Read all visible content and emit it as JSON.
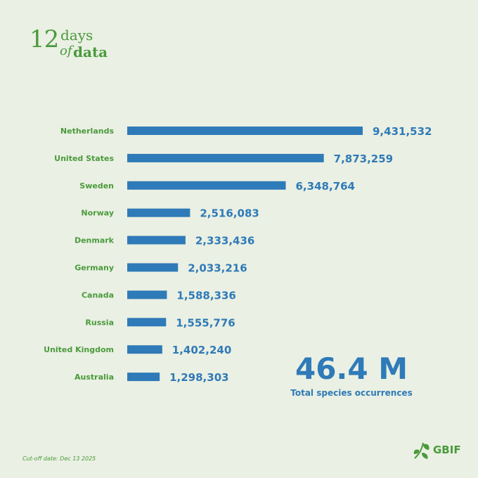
{
  "branding": {
    "logo_number": "12",
    "logo_days": "days",
    "logo_of": "of",
    "logo_data": "data",
    "org": "GBIF"
  },
  "colors": {
    "background": "#eaf0e3",
    "bar": "#2f7ab8",
    "label_green": "#4a9a3c",
    "value_blue": "#2f7ab8"
  },
  "total": {
    "value": "46.4 M",
    "label": "Total species occurrences"
  },
  "footnote": "Cut-off date: Dec 13 2025",
  "chart_data": {
    "type": "bar",
    "orientation": "horizontal",
    "categories": [
      "Netherlands",
      "United States",
      "Sweden",
      "Norway",
      "Denmark",
      "Germany",
      "Canada",
      "Russia",
      "United Kingdom",
      "Australia"
    ],
    "values": [
      9431532,
      7873259,
      6348764,
      2516083,
      2333436,
      2033216,
      1588336,
      1555776,
      1402240,
      1298303
    ],
    "value_labels": [
      "9,431,532",
      "7,873,259",
      "6,348,764",
      "2,516,083",
      "2,333,436",
      "2,033,216",
      "1,588,336",
      "1,555,776",
      "1,402,240",
      "1,298,303"
    ],
    "title": "",
    "xlabel": "",
    "ylabel": "",
    "grid": false
  }
}
